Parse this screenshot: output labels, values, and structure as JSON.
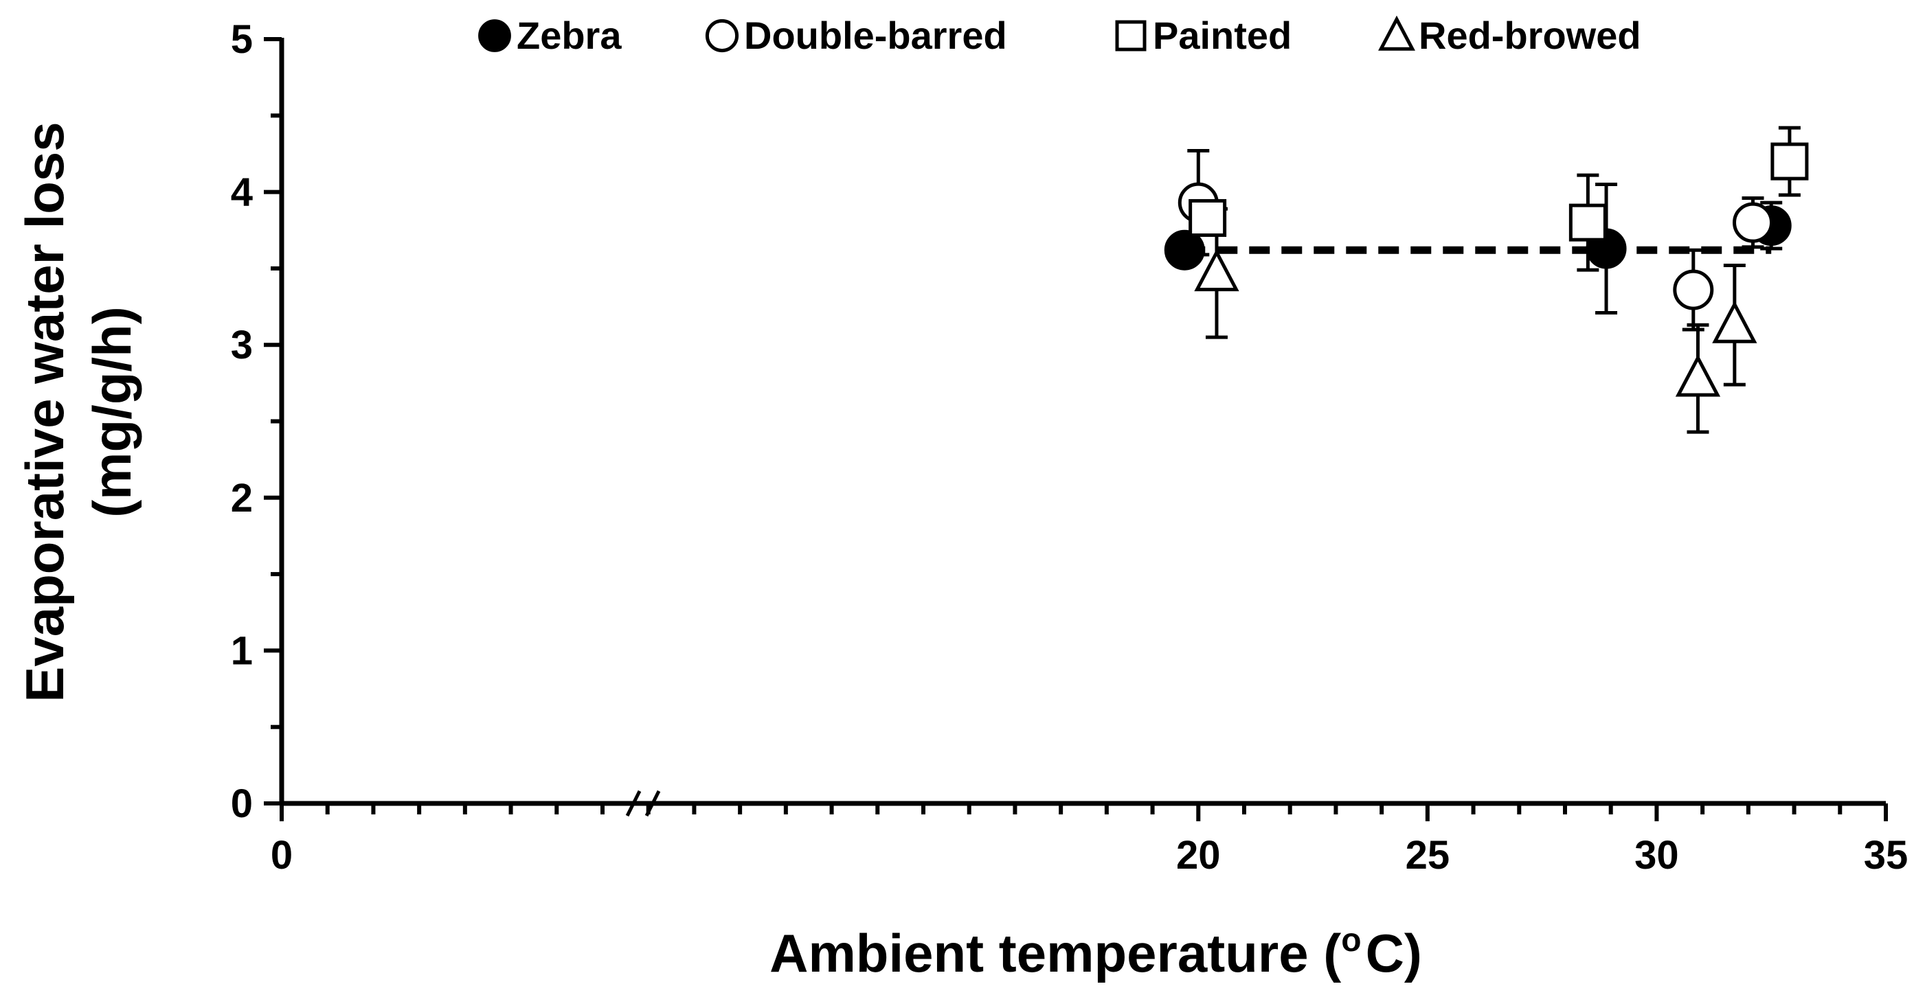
{
  "chart_data": {
    "type": "scatter",
    "xlabel": "Ambient temperature (",
    "xlabel_sup": "o",
    "xlabel_end": "C)",
    "ylabel_line1": "Evaporative water loss",
    "ylabel_line2": "(mg/g/h)",
    "xlim": [
      0,
      35
    ],
    "ylim": [
      0,
      5
    ],
    "axis_break": "//",
    "x_ticks": [
      {
        "value": 0,
        "label": "0"
      },
      {
        "value": 20,
        "label": "20"
      },
      {
        "value": 25,
        "label": "25"
      },
      {
        "value": 30,
        "label": "30"
      },
      {
        "value": 35,
        "label": "35"
      }
    ],
    "y_ticks": [
      {
        "value": 0,
        "label": "0"
      },
      {
        "value": 1,
        "label": "1"
      },
      {
        "value": 2,
        "label": "2"
      },
      {
        "value": 3,
        "label": "3"
      },
      {
        "value": 4,
        "label": "4"
      },
      {
        "value": 5,
        "label": "5"
      }
    ],
    "grid": false,
    "legend_position": "top",
    "series": [
      {
        "name": "Zebra",
        "marker": "filled-circle",
        "points": [
          {
            "x": 19.7,
            "y": 3.62,
            "err": 0
          },
          {
            "x": 28.9,
            "y": 3.63,
            "err": 0.42
          },
          {
            "x": 32.5,
            "y": 3.78,
            "err": 0.15
          }
        ]
      },
      {
        "name": "Double-barred",
        "marker": "open-circle",
        "points": [
          {
            "x": 20.0,
            "y": 3.93,
            "err": 0.34
          },
          {
            "x": 30.8,
            "y": 3.36,
            "err": 0.26
          },
          {
            "x": 32.1,
            "y": 3.8,
            "err": 0.16
          }
        ]
      },
      {
        "name": "Painted",
        "marker": "open-square",
        "points": [
          {
            "x": 20.2,
            "y": 3.83,
            "err": 0.06
          },
          {
            "x": 28.5,
            "y": 3.8,
            "err": 0.31
          },
          {
            "x": 32.9,
            "y": 4.2,
            "err": 0.22
          }
        ]
      },
      {
        "name": "Red-browed",
        "marker": "open-triangle",
        "points": [
          {
            "x": 20.4,
            "y": 3.47,
            "err": 0.42
          },
          {
            "x": 30.9,
            "y": 2.78,
            "err": 0.35
          },
          {
            "x": 31.7,
            "y": 3.13,
            "err": 0.39
          }
        ]
      }
    ],
    "fit_line": {
      "style": "dashed",
      "x_start": 19.7,
      "x_end": 32.5,
      "y": 3.62
    }
  }
}
